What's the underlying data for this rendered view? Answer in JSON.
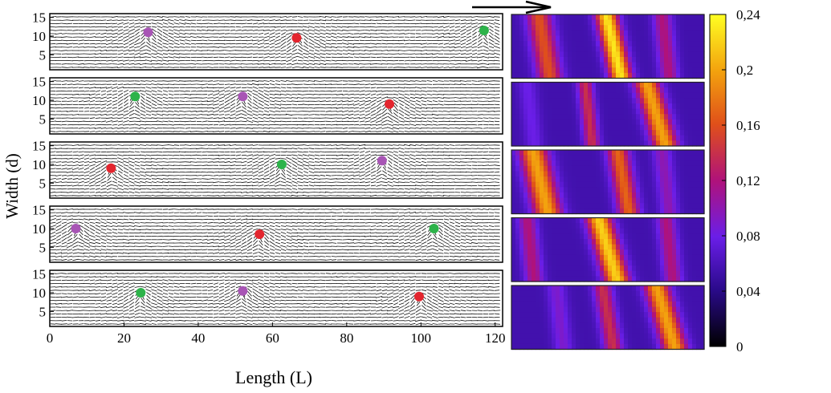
{
  "chart_data": {
    "type": "scatter",
    "panels_left": {
      "x_axis_label": "Length (L)",
      "y_axis_label": "Width (d)",
      "x_ticks": [
        "0",
        "20",
        "40",
        "60",
        "80",
        "100",
        "120"
      ],
      "y_ticks": [
        "5",
        "10",
        "15"
      ],
      "xlim": [
        0,
        122
      ],
      "ylim": [
        1,
        16
      ],
      "panels": [
        {
          "particles": [
            {
              "x": 26.5,
              "y": 11,
              "color": "#a855b5"
            },
            {
              "x": 66.5,
              "y": 9.5,
              "color": "#e3252e"
            },
            {
              "x": 117,
              "y": 11.5,
              "color": "#2db34a"
            }
          ]
        },
        {
          "particles": [
            {
              "x": 23,
              "y": 11,
              "color": "#2db34a"
            },
            {
              "x": 52,
              "y": 11,
              "color": "#a855b5"
            },
            {
              "x": 91.5,
              "y": 9,
              "color": "#e3252e"
            }
          ]
        },
        {
          "particles": [
            {
              "x": 16.5,
              "y": 9,
              "color": "#e3252e"
            },
            {
              "x": 62.5,
              "y": 10,
              "color": "#2db34a"
            },
            {
              "x": 89.5,
              "y": 11,
              "color": "#a855b5"
            }
          ]
        },
        {
          "particles": [
            {
              "x": 7,
              "y": 10,
              "color": "#a855b5"
            },
            {
              "x": 56.5,
              "y": 8.5,
              "color": "#e3252e"
            },
            {
              "x": 103.5,
              "y": 10,
              "color": "#2db34a"
            }
          ]
        },
        {
          "particles": [
            {
              "x": 24.5,
              "y": 10,
              "color": "#2db34a"
            },
            {
              "x": 52,
              "y": 10.5,
              "color": "#a855b5"
            },
            {
              "x": 99.5,
              "y": 9,
              "color": "#e3252e"
            }
          ]
        }
      ]
    },
    "heatmaps_right": {
      "colorbar_ticks": [
        "0",
        "0,04",
        "0,08",
        "0,12",
        "0,16",
        "0,2",
        "0,24"
      ],
      "value_range": [
        0,
        0.24
      ],
      "panels": [
        {
          "bands": [
            {
              "pos": 0.17,
              "value": 0.16,
              "slope": 0.03,
              "width": 0.08
            },
            {
              "pos": 0.53,
              "value": 0.23,
              "slope": 0.04,
              "width": 0.07
            },
            {
              "pos": 0.8,
              "value": 0.12,
              "slope": 0.02,
              "width": 0.06
            }
          ]
        },
        {
          "bands": [
            {
              "pos": 0.1,
              "value": 0.08,
              "slope": 0.02,
              "width": 0.06
            },
            {
              "pos": 0.4,
              "value": 0.14,
              "slope": 0.02,
              "width": 0.05
            },
            {
              "pos": 0.75,
              "value": 0.2,
              "slope": 0.05,
              "width": 0.08
            }
          ]
        },
        {
          "bands": [
            {
              "pos": 0.15,
              "value": 0.2,
              "slope": 0.04,
              "width": 0.09
            },
            {
              "pos": 0.58,
              "value": 0.17,
              "slope": 0.03,
              "width": 0.07
            },
            {
              "pos": 0.8,
              "value": 0.1,
              "slope": 0.02,
              "width": 0.06
            }
          ]
        },
        {
          "bands": [
            {
              "pos": 0.1,
              "value": 0.12,
              "slope": 0.02,
              "width": 0.06
            },
            {
              "pos": 0.5,
              "value": 0.22,
              "slope": 0.05,
              "width": 0.08
            },
            {
              "pos": 0.82,
              "value": 0.12,
              "slope": 0.02,
              "width": 0.06
            }
          ]
        },
        {
          "bands": [
            {
              "pos": 0.25,
              "value": 0.09,
              "slope": 0.02,
              "width": 0.06
            },
            {
              "pos": 0.5,
              "value": 0.14,
              "slope": 0.03,
              "width": 0.06
            },
            {
              "pos": 0.8,
              "value": 0.2,
              "slope": 0.05,
              "width": 0.08
            }
          ]
        }
      ]
    }
  }
}
